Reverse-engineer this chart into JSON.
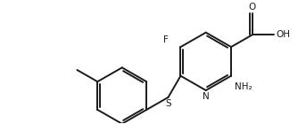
{
  "background_color": "#ffffff",
  "line_color": "#1a1a1a",
  "line_width": 1.4,
  "font_size": 7.5,
  "fig_width": 3.34,
  "fig_height": 1.4,
  "dpi": 100,
  "xlim": [
    0.0,
    10.5
  ],
  "ylim": [
    0.3,
    4.7
  ]
}
